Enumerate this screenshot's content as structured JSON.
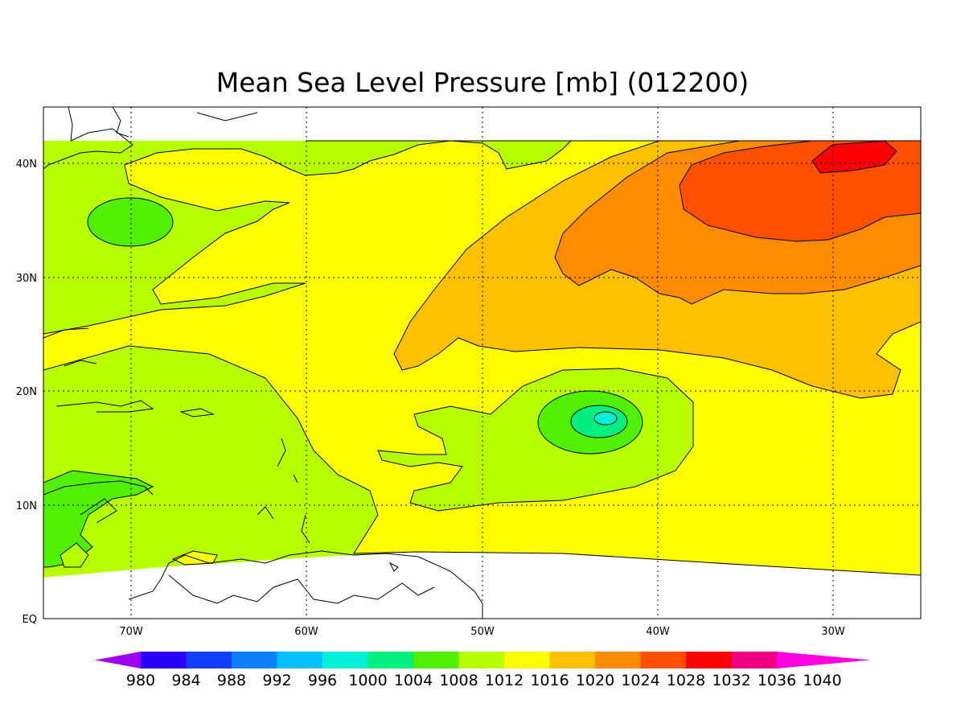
{
  "title": "Mean Sea Level Pressure [mb] (012200)",
  "y_ticks": [
    "40N",
    "30N",
    "20N",
    "10N",
    "EQ"
  ],
  "x_ticks": [
    "70W",
    "60W",
    "50W",
    "40W",
    "30W"
  ],
  "colorbar": {
    "labels": [
      "980",
      "984",
      "988",
      "992",
      "996",
      "1000",
      "1004",
      "1008",
      "1012",
      "1016",
      "1020",
      "1024",
      "1028",
      "1032",
      "1036",
      "1040"
    ],
    "colors": [
      "#a000f0",
      "#2a00f5",
      "#1040ff",
      "#0a80ff",
      "#00c0ff",
      "#00f0d8",
      "#00f080",
      "#50f000",
      "#b8ff00",
      "#ffff00",
      "#ffc000",
      "#ff8c00",
      "#ff5000",
      "#ff0000",
      "#f00080",
      "#ff00e0"
    ]
  },
  "colors": {
    "p1008": "#50f000",
    "p1012": "#b8ff00",
    "p1016": "#ffff00",
    "p1020": "#ffc000",
    "p1024": "#ff8c00",
    "p1028": "#ff5000",
    "p1032": "#ff0000",
    "p1004": "#00f080",
    "p1000": "#00f0d8"
  }
}
